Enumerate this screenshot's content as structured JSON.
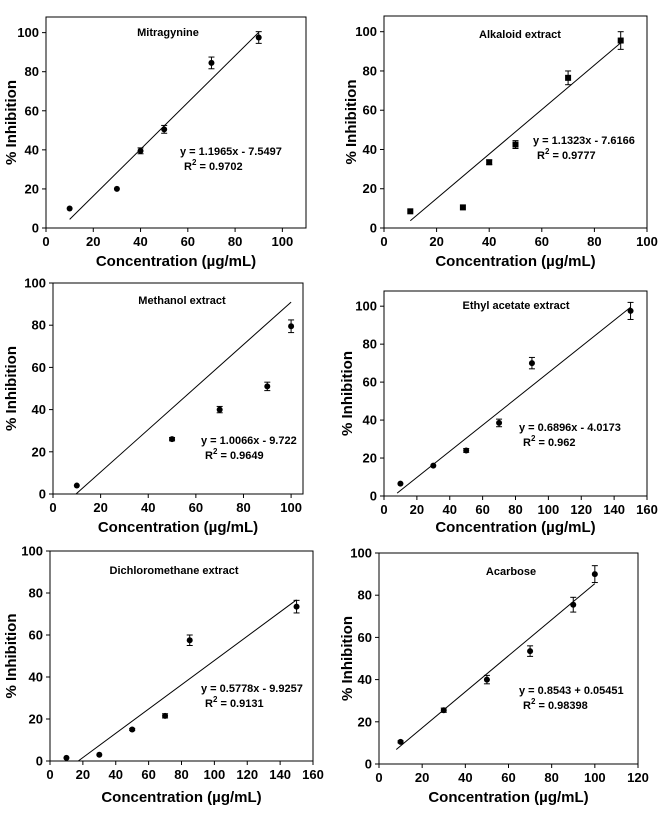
{
  "chart_data": [
    {
      "type": "scatter",
      "title": "Mitragynine",
      "xlabel": "Concentration (µg/mL)",
      "ylabel": "% Inhibition",
      "xlim": [
        0,
        110
      ],
      "ylim": [
        0,
        108
      ],
      "xticks": [
        "0",
        "20",
        "40",
        "60",
        "80",
        "100"
      ],
      "yticks": [
        "0",
        "20",
        "40",
        "60",
        "80",
        "100"
      ],
      "series": [
        {
          "name": "Mitragynine",
          "x": [
            10,
            30,
            40,
            50,
            70,
            90
          ],
          "y": [
            10,
            20,
            39.5,
            50.5,
            84.5,
            97.5
          ],
          "err": [
            0.5,
            0.5,
            1.5,
            2,
            3,
            3
          ]
        }
      ],
      "fit": {
        "slope": 1.1965,
        "intercept": -7.5497,
        "x_range": [
          10,
          90
        ]
      },
      "equation": "y = 1.1965x - 7.5497",
      "r2_label": "R",
      "r2_exp": "2",
      "r2_value": " = 0.9702",
      "marker": "circle"
    },
    {
      "type": "scatter",
      "title": "Alkaloid extract",
      "xlabel": "Concentration (µg/mL)",
      "ylabel": "% Inhibition",
      "xlim": [
        0,
        100
      ],
      "ylim": [
        0,
        108
      ],
      "xticks": [
        "0",
        "20",
        "40",
        "60",
        "80",
        "100"
      ],
      "yticks": [
        "0",
        "20",
        "40",
        "60",
        "80",
        "100"
      ],
      "series": [
        {
          "name": "Alkaloid extract",
          "x": [
            10,
            30,
            40,
            50,
            70,
            90
          ],
          "y": [
            8.5,
            10.5,
            33.5,
            42.5,
            76.5,
            95.5
          ],
          "err": [
            0.5,
            0.5,
            1.2,
            2,
            3.5,
            4.5
          ]
        }
      ],
      "fit": {
        "slope": 1.1323,
        "intercept": -7.6166,
        "x_range": [
          10,
          90
        ]
      },
      "equation": "y = 1.1323x - 7.6166",
      "r2_label": "R",
      "r2_exp": "2",
      "r2_value": " = 0.9777",
      "marker": "square"
    },
    {
      "type": "scatter",
      "title": "Methanol extract",
      "xlabel": "Concentration (µg/mL)",
      "ylabel": "% Inhibition",
      "xlim": [
        0,
        105
      ],
      "ylim": [
        0,
        100
      ],
      "xticks": [
        "0",
        "20",
        "40",
        "60",
        "80",
        "100"
      ],
      "yticks": [
        "0",
        "20",
        "40",
        "60",
        "80",
        "100"
      ],
      "series": [
        {
          "name": "Methanol extract",
          "x": [
            10,
            50,
            70,
            90,
            100
          ],
          "y": [
            4,
            26,
            40,
            51,
            79.5
          ],
          "err": [
            0.3,
            0.8,
            1.5,
            2,
            3
          ]
        }
      ],
      "fit": {
        "slope": 1.0066,
        "intercept": -9.722,
        "x_range": [
          9.66,
          100
        ]
      },
      "equation": "y = 1.0066x - 9.722",
      "r2_label": "R",
      "r2_exp": "2",
      "r2_value": " = 0.9649",
      "marker": "circle"
    },
    {
      "type": "scatter",
      "title": "Ethyl acetate extract",
      "xlabel": "Concentration (µg/mL)",
      "ylabel": "% Inhibition",
      "xlim": [
        0,
        160
      ],
      "ylim": [
        0,
        108
      ],
      "xticks": [
        "0",
        "20",
        "40",
        "60",
        "80",
        "100",
        "120",
        "140",
        "160"
      ],
      "yticks": [
        "0",
        "20",
        "40",
        "60",
        "80",
        "100"
      ],
      "series": [
        {
          "name": "Ethyl acetate extract",
          "x": [
            10,
            30,
            50,
            70,
            90,
            150
          ],
          "y": [
            6.5,
            16,
            24,
            38.5,
            70,
            97.5
          ],
          "err": [
            0.5,
            0.5,
            1,
            2,
            3,
            4.5
          ]
        }
      ],
      "fit": {
        "slope": 0.6896,
        "intercept": -4.0173,
        "x_range": [
          8,
          150
        ]
      },
      "equation": "y = 0.6896x - 4.0173",
      "r2_label": "R",
      "r2_exp": "2",
      "r2_value": " = 0.962",
      "marker": "circle"
    },
    {
      "type": "scatter",
      "title": "Dichloromethane extract",
      "xlabel": "Concentration (µg/mL)",
      "ylabel": "% Inhibition",
      "xlim": [
        0,
        160
      ],
      "ylim": [
        0,
        100
      ],
      "xticks": [
        "0",
        "20",
        "40",
        "60",
        "80",
        "100",
        "120",
        "140",
        "160"
      ],
      "yticks": [
        "0",
        "20",
        "40",
        "60",
        "80",
        "100"
      ],
      "series": [
        {
          "name": "Dichloromethane extract",
          "x": [
            10,
            30,
            50,
            70,
            85,
            150
          ],
          "y": [
            1.5,
            3,
            15,
            21.5,
            57.5,
            73.5
          ],
          "err": [
            0.3,
            0.3,
            0.5,
            1,
            2.5,
            3
          ]
        }
      ],
      "fit": {
        "slope": 0.5778,
        "intercept": -9.9257,
        "x_range": [
          17.18,
          150
        ]
      },
      "equation": "y = 0.5778x - 9.9257",
      "r2_label": "R",
      "r2_exp": "2",
      "r2_value": " = 0.9131",
      "marker": "circle"
    },
    {
      "type": "scatter",
      "title": "Acarbose",
      "xlabel": "Concentration (µg/mL)",
      "ylabel": "% Inhibition",
      "xlim": [
        0,
        120
      ],
      "ylim": [
        0,
        100
      ],
      "xticks": [
        "0",
        "20",
        "40",
        "60",
        "80",
        "100",
        "120"
      ],
      "yticks": [
        "0",
        "20",
        "40",
        "60",
        "80",
        "100"
      ],
      "series": [
        {
          "name": "Acarbose",
          "x": [
            10,
            30,
            50,
            70,
            90,
            100
          ],
          "y": [
            10.5,
            25.5,
            40,
            53.5,
            75.5,
            90
          ],
          "err": [
            0.5,
            1,
            2,
            2.5,
            3.5,
            4
          ]
        }
      ],
      "fit": {
        "slope": 0.8543,
        "intercept": 0.05451,
        "x_range": [
          8,
          100
        ]
      },
      "equation": "y = 0.8543 + 0.05451",
      "r2_label": "R",
      "r2_exp": "2",
      "r2_value": " = 0.98398",
      "marker": "circle"
    }
  ]
}
